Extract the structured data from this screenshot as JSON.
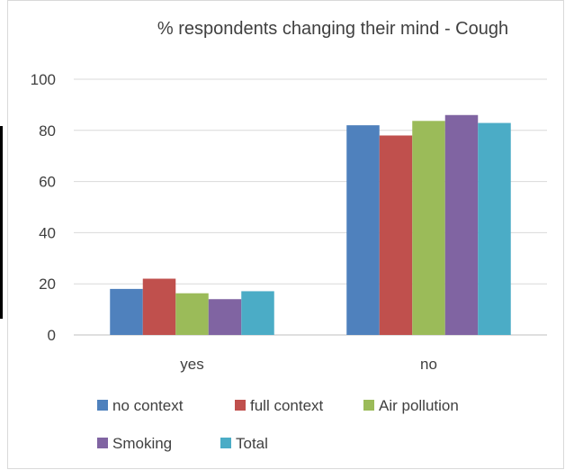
{
  "chart_data": {
    "type": "bar",
    "title": "% respondents changing their mind - Cough",
    "categories": [
      "yes",
      "no"
    ],
    "series": [
      {
        "name": "no context",
        "values": [
          18,
          82
        ],
        "color": "#4f81bd"
      },
      {
        "name": "full context",
        "values": [
          22,
          78
        ],
        "color": "#c0504d"
      },
      {
        "name": "Air pollution",
        "values": [
          16.3,
          83.7
        ],
        "color": "#9bbb59"
      },
      {
        "name": "Smoking",
        "values": [
          14,
          86
        ],
        "color": "#8064a2"
      },
      {
        "name": "Total",
        "values": [
          17.1,
          82.9
        ],
        "color": "#4bacc6"
      }
    ],
    "y_ticks": [
      "0",
      "20",
      "40",
      "60",
      "80",
      "100"
    ],
    "ylim": [
      0,
      100
    ],
    "grid": true,
    "legend_position": "bottom"
  }
}
